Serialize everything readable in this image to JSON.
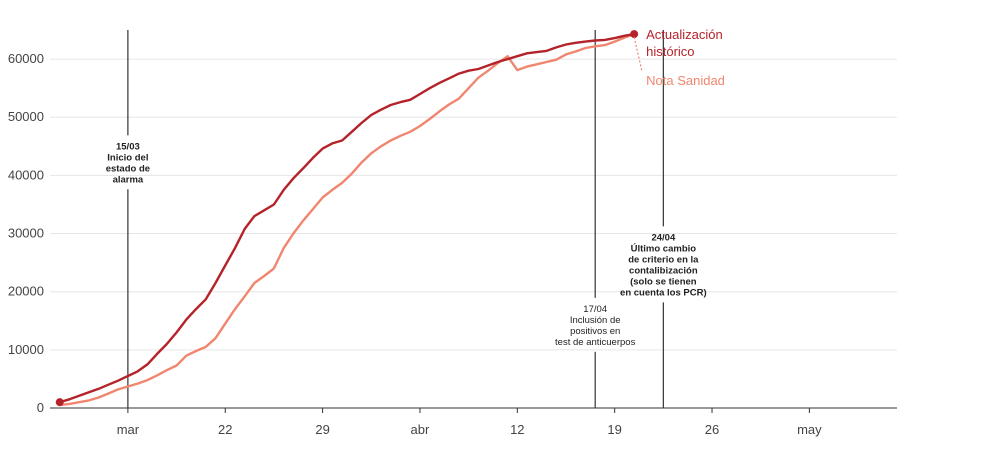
{
  "chart_data": {
    "type": "line",
    "title": "",
    "xlabel": "",
    "ylabel": "",
    "x_day_range": [
      -1,
      86
    ],
    "ylim": [
      0,
      65000
    ],
    "y_ticks": [
      0,
      10000,
      20000,
      30000,
      40000,
      50000,
      60000
    ],
    "y_tick_labels": [
      "0",
      "10000",
      "20000",
      "30000",
      "40000",
      "50000",
      "60000"
    ],
    "x_ticks": [
      {
        "day": 7,
        "label": "mar"
      },
      {
        "day": 17,
        "label": "22"
      },
      {
        "day": 27,
        "label": "29"
      },
      {
        "day": 37,
        "label": "abr"
      },
      {
        "day": 47,
        "label": "12"
      },
      {
        "day": 57,
        "label": "19"
      },
      {
        "day": 67,
        "label": "26"
      },
      {
        "day": 77,
        "label": "may"
      }
    ],
    "grid": true,
    "series": [
      {
        "name": "Actualización histórico",
        "color": "#b5232a",
        "points": [
          [
            0,
            1000
          ],
          [
            1,
            1500
          ],
          [
            2,
            2100
          ],
          [
            3,
            2700
          ],
          [
            4,
            3300
          ],
          [
            5,
            4000
          ],
          [
            6,
            4700
          ],
          [
            7,
            5500
          ],
          [
            8,
            6300
          ],
          [
            9,
            7500
          ],
          [
            10,
            9300
          ],
          [
            11,
            11000
          ],
          [
            12,
            13000
          ],
          [
            13,
            15200
          ],
          [
            14,
            17000
          ],
          [
            15,
            18700
          ],
          [
            16,
            21500
          ],
          [
            17,
            24500
          ],
          [
            18,
            27500
          ],
          [
            19,
            30800
          ],
          [
            20,
            33000
          ],
          [
            21,
            34000
          ],
          [
            22,
            35000
          ],
          [
            23,
            37500
          ],
          [
            24,
            39500
          ],
          [
            25,
            41200
          ],
          [
            26,
            43000
          ],
          [
            27,
            44600
          ],
          [
            28,
            45500
          ],
          [
            29,
            46000
          ],
          [
            30,
            47500
          ],
          [
            31,
            49000
          ],
          [
            32,
            50400
          ],
          [
            33,
            51300
          ],
          [
            34,
            52100
          ],
          [
            35,
            52600
          ],
          [
            36,
            53000
          ],
          [
            37,
            54000
          ],
          [
            38,
            55000
          ],
          [
            39,
            55900
          ],
          [
            40,
            56700
          ],
          [
            41,
            57500
          ],
          [
            42,
            58000
          ],
          [
            43,
            58300
          ],
          [
            44,
            58900
          ],
          [
            45,
            59500
          ],
          [
            46,
            60000
          ],
          [
            47,
            60500
          ],
          [
            48,
            61000
          ],
          [
            49,
            61200
          ],
          [
            50,
            61400
          ],
          [
            51,
            62000
          ],
          [
            52,
            62500
          ],
          [
            53,
            62800
          ],
          [
            54,
            63000
          ],
          [
            55,
            63200
          ],
          [
            56,
            63300
          ],
          [
            57,
            63600
          ],
          [
            58,
            64000
          ],
          [
            59,
            64300
          ]
        ]
      },
      {
        "name": "Nota Sanidad",
        "color": "#f0866f",
        "points": [
          [
            0,
            500
          ],
          [
            1,
            700
          ],
          [
            2,
            1000
          ],
          [
            3,
            1300
          ],
          [
            4,
            1800
          ],
          [
            5,
            2500
          ],
          [
            6,
            3200
          ],
          [
            7,
            3700
          ],
          [
            8,
            4200
          ],
          [
            9,
            4800
          ],
          [
            10,
            5600
          ],
          [
            11,
            6500
          ],
          [
            12,
            7300
          ],
          [
            13,
            9000
          ],
          [
            14,
            9800
          ],
          [
            15,
            10500
          ],
          [
            16,
            12000
          ],
          [
            17,
            14500
          ],
          [
            18,
            17000
          ],
          [
            19,
            19200
          ],
          [
            20,
            21500
          ],
          [
            21,
            22700
          ],
          [
            22,
            24000
          ],
          [
            23,
            27500
          ],
          [
            24,
            30000
          ],
          [
            25,
            32200
          ],
          [
            26,
            34200
          ],
          [
            27,
            36200
          ],
          [
            28,
            37500
          ],
          [
            29,
            38700
          ],
          [
            30,
            40300
          ],
          [
            31,
            42200
          ],
          [
            32,
            43800
          ],
          [
            33,
            45000
          ],
          [
            34,
            46000
          ],
          [
            35,
            46800
          ],
          [
            36,
            47500
          ],
          [
            37,
            48500
          ],
          [
            38,
            49700
          ],
          [
            39,
            51000
          ],
          [
            40,
            52200
          ],
          [
            41,
            53200
          ],
          [
            42,
            55000
          ],
          [
            43,
            56800
          ],
          [
            44,
            58000
          ],
          [
            45,
            59300
          ],
          [
            46,
            60500
          ],
          [
            47,
            58100
          ],
          [
            48,
            58700
          ],
          [
            49,
            59100
          ],
          [
            50,
            59500
          ],
          [
            51,
            59900
          ],
          [
            52,
            60800
          ],
          [
            53,
            61300
          ],
          [
            54,
            61900
          ],
          [
            55,
            62200
          ],
          [
            56,
            62400
          ],
          [
            57,
            63000
          ],
          [
            58,
            63700
          ],
          [
            59,
            64300
          ]
        ]
      }
    ],
    "markers": [
      {
        "series": 0,
        "day": 0,
        "value": 1000
      },
      {
        "series": 0,
        "day": 59,
        "value": 64300
      }
    ],
    "vertical_lines": [
      {
        "day": 7,
        "label_lines": [
          "15/03",
          "Inicio del",
          "estado de",
          "alarma"
        ],
        "bold": true,
        "label_y": 65
      },
      {
        "day": 55,
        "label_lines": [
          "17/04",
          "Inclusión de",
          "positivos en",
          "test de anticuerpos"
        ],
        "bold": false,
        "label_y": 22
      },
      {
        "day": 62,
        "label_lines": [
          "24/04",
          "Último cambio",
          "de criterio en la",
          "contalibización",
          "(solo se tienen",
          "en cuenta los PCR)"
        ],
        "bold": true,
        "label_y": 38
      }
    ],
    "legend_placement": "right"
  }
}
